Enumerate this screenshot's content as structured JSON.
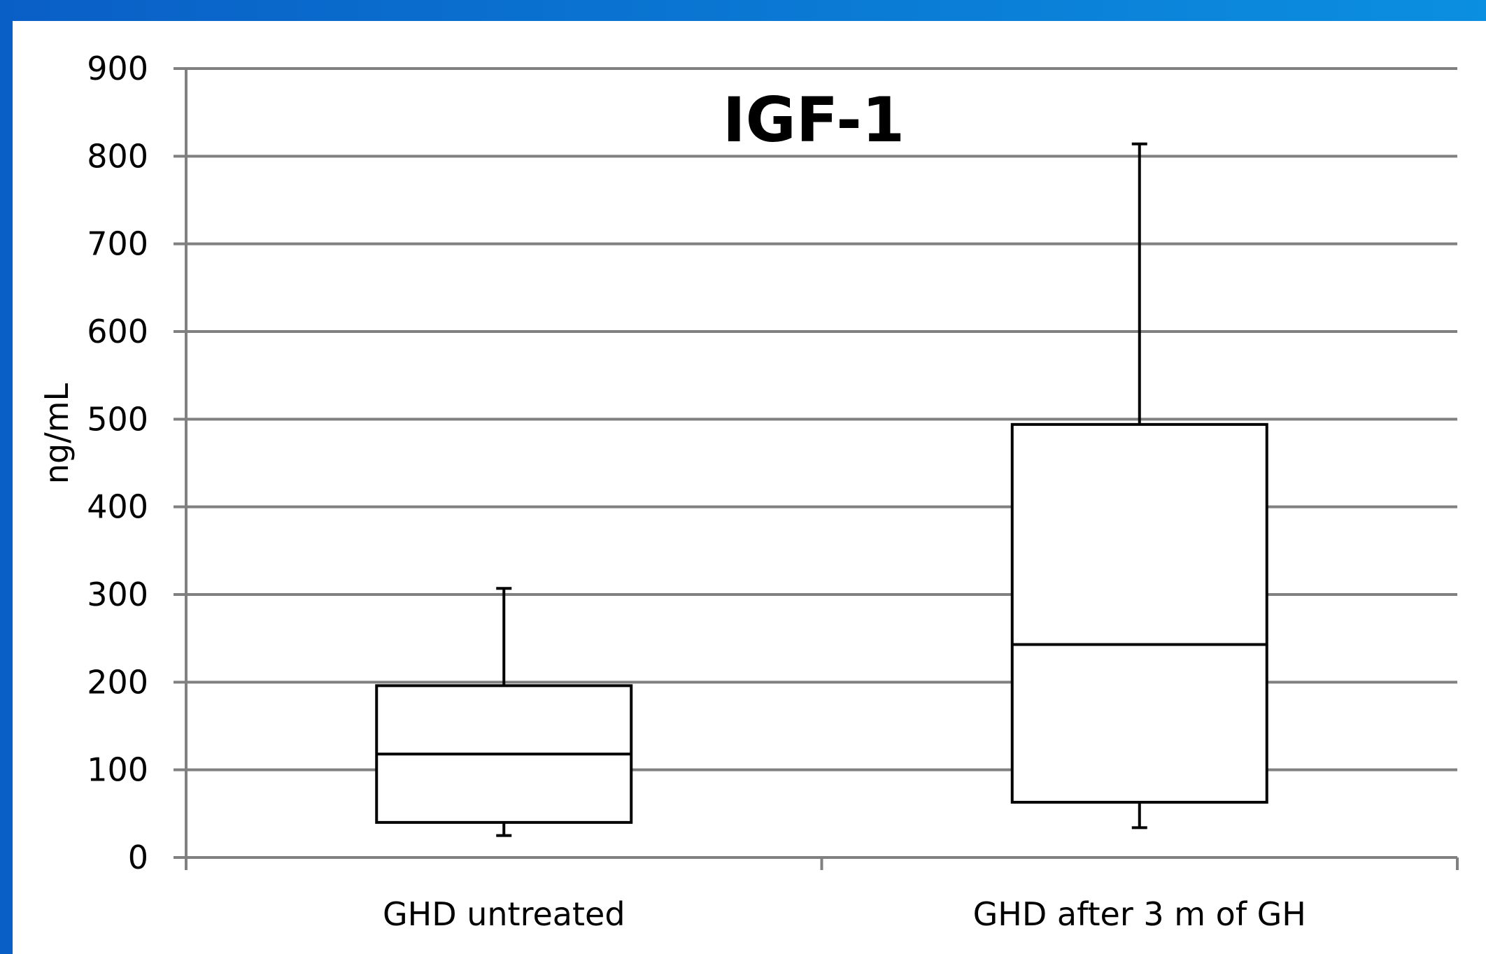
{
  "colors": {
    "frame_gradient_start": "#0a5fc6",
    "frame_gradient_end": "#0b8fe0",
    "gridline": "#808080",
    "box_stroke": "#000000",
    "box_fill": "#ffffff"
  },
  "chart_data": {
    "type": "box",
    "title": "IGF-1",
    "xlabel": "",
    "ylabel": "ng/mL",
    "ylim": [
      0,
      900
    ],
    "yticks": [
      0,
      100,
      200,
      300,
      400,
      500,
      600,
      700,
      800,
      900
    ],
    "grid": true,
    "legend": "none",
    "categories": [
      "GHD untreated",
      "GHD after 3 m of GH"
    ],
    "boxes": [
      {
        "category": "GHD untreated",
        "min": 25,
        "q1": 40,
        "median": 118,
        "q3": 196,
        "max": 307
      },
      {
        "category": "GHD after 3 m of GH",
        "min": 34,
        "q1": 63,
        "median": 243,
        "q3": 494,
        "max": 814
      }
    ]
  }
}
